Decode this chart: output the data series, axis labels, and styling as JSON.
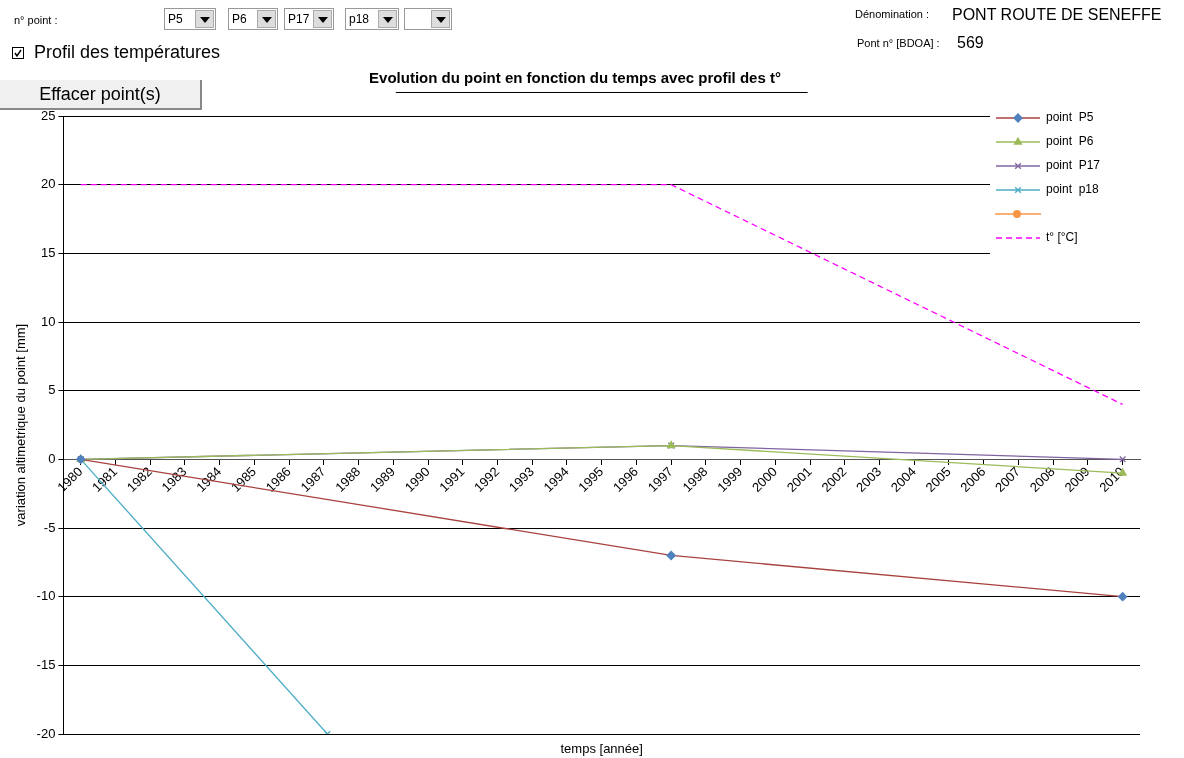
{
  "chart_data": {
    "type": "line",
    "title": "Evolution du point en fonction du temps avec profil des t°",
    "xlabel": "temps [année]",
    "ylabel": "variation altimetrique du point [mm]",
    "series": [
      {
        "name": "point  P5",
        "color": "#a8423f",
        "colors": [
          "#4f81bd",
          "#4f81bd",
          "#4f81bd"
        ],
        "marker": "diamond",
        "x": [
          1980,
          1997,
          2010
        ],
        "values": [
          0,
          -7,
          -10
        ]
      },
      {
        "name": "point  P6",
        "color": "#9bbb59",
        "marker": "triangle",
        "x": [
          1980,
          1997,
          2010
        ],
        "values": [
          0,
          1,
          -1
        ]
      },
      {
        "name": "point  P17",
        "color": "#8064a2",
        "marker": "cross",
        "x": [
          1980,
          1997,
          2010
        ],
        "values": [
          0,
          1,
          0
        ]
      },
      {
        "name": "point  p18",
        "color": "#4bacc6",
        "marker": "cross",
        "x": [
          1980,
          1987.1
        ],
        "values": [
          0,
          -20
        ]
      },
      {
        "name": "t° [°C]",
        "color": "#ff00ff",
        "marker": "none",
        "line_style": "dashed",
        "x": [
          1980,
          1997,
          2010
        ],
        "values": [
          20,
          20,
          4
        ]
      }
    ],
    "xlim": [
      1979.5,
      2010.5
    ],
    "xticks": [
      1980,
      1981,
      1982,
      1983,
      1984,
      1985,
      1986,
      1987,
      1988,
      1989,
      1990,
      1991,
      1992,
      1993,
      1994,
      1995,
      1996,
      1997,
      1998,
      1999,
      2000,
      2001,
      2002,
      2003,
      2004,
      2005,
      2006,
      2007,
      2008,
      2009,
      2010
    ],
    "ylim": [
      -20,
      25
    ],
    "yticks": [
      -20,
      -15,
      -10,
      -5,
      0,
      5,
      10,
      15,
      20,
      25
    ],
    "grid": "y",
    "legend": "top right",
    "annotations": [
      "n° point :",
      "P5",
      "P6",
      "P17",
      "p18",
      "Profil des températures",
      "Effacer point(s)",
      "Dénomination :",
      "PONT ROUTE DE SENEFFE",
      "Pont n° [BDOA] :",
      "569"
    ]
  }
}
